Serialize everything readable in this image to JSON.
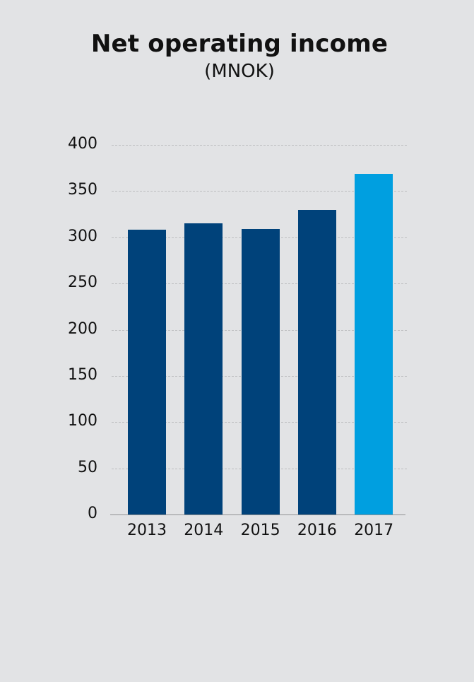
{
  "chart_data": {
    "type": "bar",
    "title": "Net operating income",
    "subtitle": "(MNOK)",
    "xlabel": "",
    "ylabel": "",
    "categories": [
      "2013",
      "2014",
      "2015",
      "2016",
      "2017"
    ],
    "values": [
      308,
      315,
      309,
      330,
      369
    ],
    "ylim": [
      0,
      400
    ],
    "yticks": [
      0,
      50,
      100,
      150,
      200,
      250,
      300,
      350,
      400
    ],
    "grid": "horizontal dashed",
    "legend": "none",
    "colors": {
      "default_bar": "#00427a",
      "highlight_bar": "#009fe0",
      "background": "#e2e3e5"
    },
    "highlighted_category": "2017"
  }
}
